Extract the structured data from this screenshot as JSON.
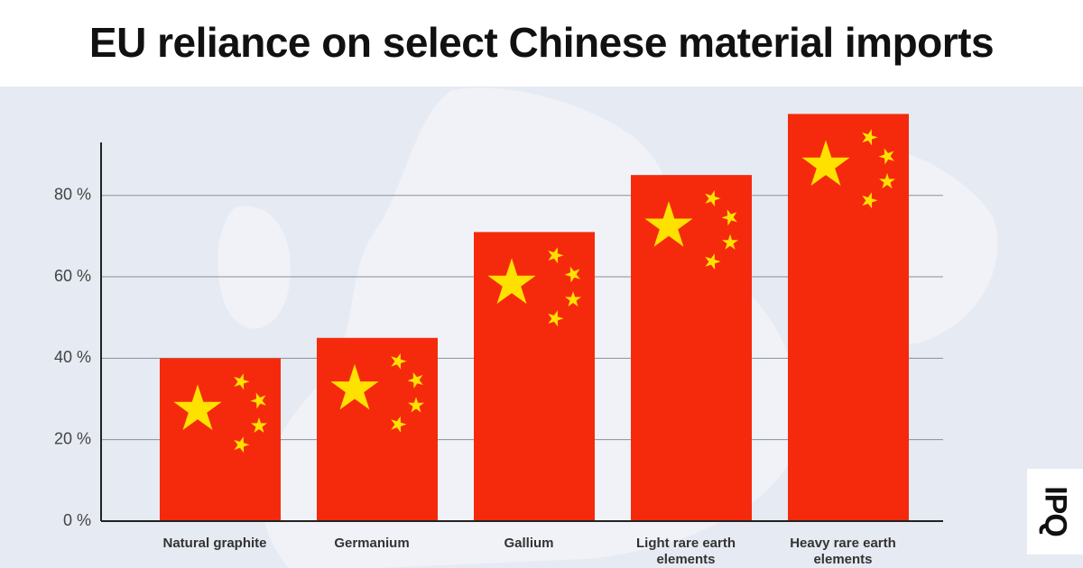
{
  "chart_data": {
    "type": "bar",
    "title": "EU reliance on select Chinese material imports",
    "categories": [
      "Natural graphite",
      "Germanium",
      "Gallium",
      "Light rare earth elements",
      "Heavy rare earth elements"
    ],
    "values": [
      40,
      45,
      71,
      85,
      100
    ],
    "color": "#f52a0c",
    "star_color": "#ffe100",
    "ylim": [
      0,
      93
    ],
    "yticks": [
      {
        "value": 0,
        "label": "0 %"
      },
      {
        "value": 20,
        "label": "20 %"
      },
      {
        "value": 40,
        "label": "40 %"
      },
      {
        "value": 60,
        "label": "60 %"
      },
      {
        "value": 80,
        "label": "80 %"
      }
    ],
    "grid": true
  },
  "logo": "IPQ"
}
